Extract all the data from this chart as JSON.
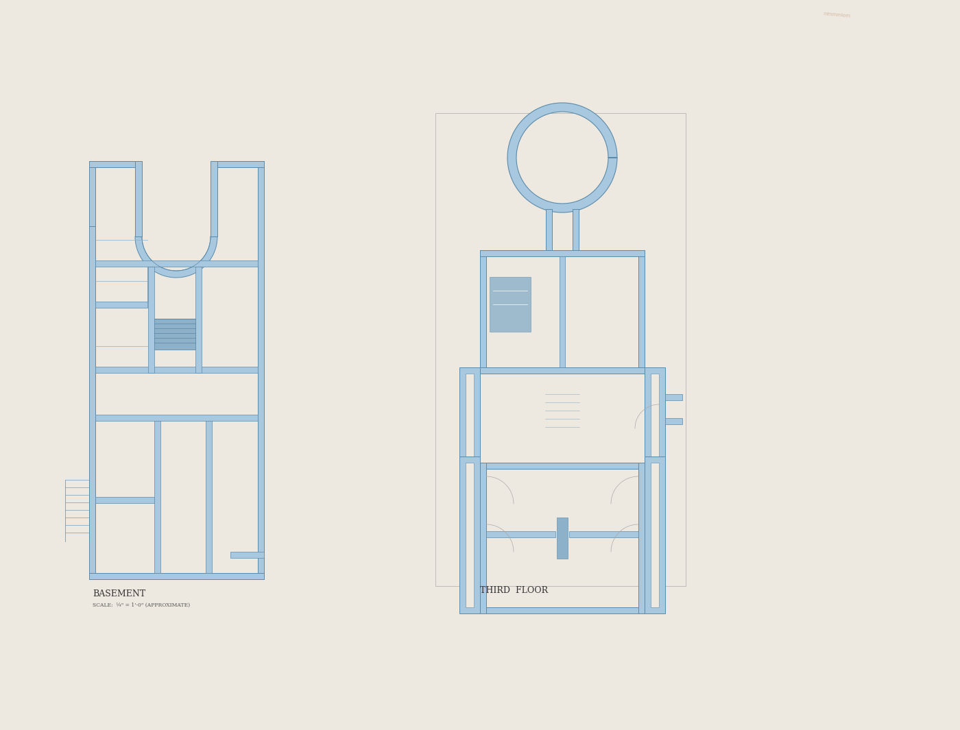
{
  "background_color": "#e8e5de",
  "wall_color": "#7da8c7",
  "wall_fill": "#a8c8df",
  "line_color": "#5a8aaa",
  "inner_line_color": "#8ab0c8",
  "paper_color": "#ede9e0",
  "title_basement": "BASEMENT",
  "title_third": "THIRD  FLOOR",
  "subtitle_basement": "SCALE:  ¼\" = 1'-0\" (APPROXIMATE)",
  "wall_thickness": 8
}
